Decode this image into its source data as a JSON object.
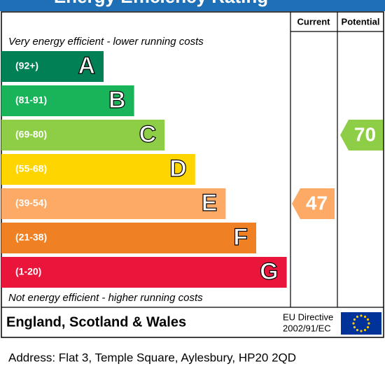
{
  "header": {
    "title": "Energy Efficiency Rating"
  },
  "columns": [
    "Current",
    "Potential"
  ],
  "top_note": "Very energy efficient - lower running costs",
  "bottom_note": "Not energy efficient - higher running costs",
  "bands": [
    {
      "range": "(92+)",
      "letter": "A",
      "color": "#008054"
    },
    {
      "range": "(81-91)",
      "letter": "B",
      "color": "#19b459"
    },
    {
      "range": "(69-80)",
      "letter": "C",
      "color": "#8dce46"
    },
    {
      "range": "(55-68)",
      "letter": "D",
      "color": "#ffd500"
    },
    {
      "range": "(39-54)",
      "letter": "E",
      "color": "#fcaa65"
    },
    {
      "range": "(21-38)",
      "letter": "F",
      "color": "#ef8023"
    },
    {
      "range": "(1-20)",
      "letter": "G",
      "color": "#e9153b"
    }
  ],
  "current": {
    "value": 47,
    "band": 4
  },
  "potential": {
    "value": 70,
    "band": 2
  },
  "region": "England, Scotland & Wales",
  "directive": [
    "EU Directive",
    "2002/91/EC"
  ],
  "address": "Address: Flat 3, Temple Square, Aylesbury, HP20 2QD"
}
